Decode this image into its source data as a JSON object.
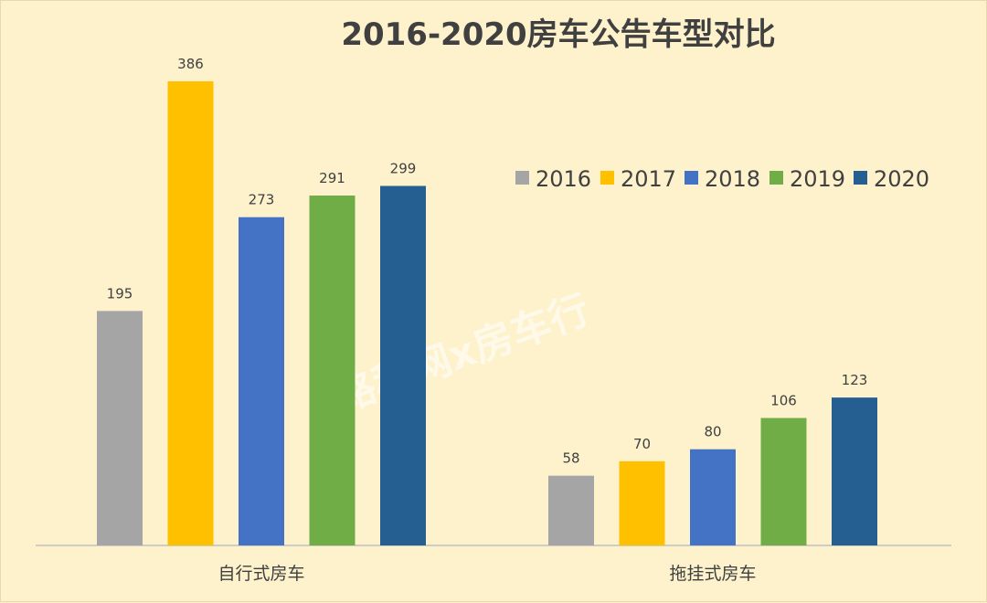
{
  "watermark": "路程网x房车行",
  "chart_data": {
    "type": "bar",
    "title": "2016-2020房车公告车型对比",
    "categories": [
      "自行式房车",
      "拖挂式房车"
    ],
    "series": [
      {
        "name": "2016",
        "color": "#a5a5a5",
        "values": [
          195,
          58
        ]
      },
      {
        "name": "2017",
        "color": "#ffc000",
        "values": [
          386,
          70
        ]
      },
      {
        "name": "2018",
        "color": "#4472c4",
        "values": [
          273,
          80
        ]
      },
      {
        "name": "2019",
        "color": "#70ad47",
        "values": [
          291,
          106
        ]
      },
      {
        "name": "2020",
        "color": "#255e91",
        "values": [
          299,
          123
        ]
      }
    ],
    "ylim": [
      0,
      400
    ],
    "grid": false,
    "legend": "right-middle",
    "data_labels": true
  }
}
